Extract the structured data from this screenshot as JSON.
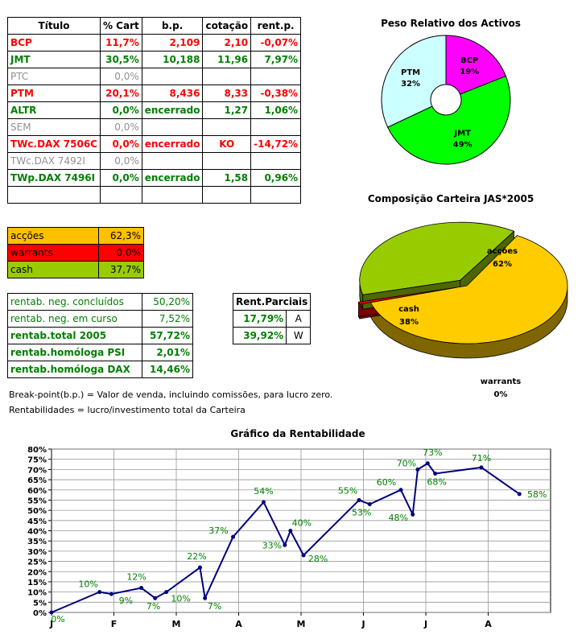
{
  "portfolio": {
    "headers": [
      "Título",
      "% Cart",
      "b.p.",
      "cotação",
      "rent.p."
    ],
    "rows": [
      {
        "titulo": "BCP",
        "cart": "11,7%",
        "bp": "2,109",
        "cot": "2,10",
        "rent": "-0,07%",
        "style": "red"
      },
      {
        "titulo": "JMT",
        "cart": "30,5%",
        "bp": "10,188",
        "cot": "11,96",
        "rent": "7,97%",
        "style": "green"
      },
      {
        "titulo": "PTC",
        "cart": "0,0%",
        "bp": "",
        "cot": "",
        "rent": "",
        "style": "gray"
      },
      {
        "titulo": "PTM",
        "cart": "20,1%",
        "bp": "8,436",
        "cot": "8,33",
        "rent": "-0,38%",
        "style": "red"
      },
      {
        "titulo": "ALTR",
        "cart": "0,0%",
        "bp": "encerrado",
        "cot": "1,27",
        "rent": "1,06%",
        "style": "green"
      },
      {
        "titulo": "SEM",
        "cart": "0,0%",
        "bp": "",
        "cot": "",
        "rent": "",
        "style": "gray"
      },
      {
        "titulo": "TWc.DAX 7506C",
        "cart": "0,0%",
        "bp": "encerrado",
        "cot": "KO",
        "rent": "-14,72%",
        "style": "red"
      },
      {
        "titulo": "TWc.DAX 7492I",
        "cart": "0,0%",
        "bp": "",
        "cot": "",
        "rent": "",
        "style": "gray"
      },
      {
        "titulo": "TWp.DAX 7496I",
        "cart": "0,0%",
        "bp": "encerrado",
        "cot": "1,58",
        "rent": "0,96%",
        "style": "green"
      }
    ]
  },
  "allocation": [
    {
      "label": "acções",
      "value": "62,3%",
      "color": "#ffc000"
    },
    {
      "label": "warrants",
      "value": "0,0%",
      "color": "#ff0000"
    },
    {
      "label": "cash",
      "value": "37,7%",
      "color": "#99cc00"
    }
  ],
  "returns": [
    {
      "label": "rentab. neg. concluídos",
      "value": "50,20%",
      "bold": false
    },
    {
      "label": "rentab. neg. em curso",
      "value": "7,52%",
      "bold": false
    },
    {
      "label": "rentab.total 2005",
      "value": "57,72%",
      "bold": true
    },
    {
      "label": "rentab.homóloga PSI",
      "value": "2,01%",
      "bold": true
    },
    {
      "label": "rentab.homóloga DAX",
      "value": "14,46%",
      "bold": true
    }
  ],
  "partial": {
    "title": "Rent.Parciais",
    "rows": [
      {
        "value": "17,79%",
        "code": "A"
      },
      {
        "value": "39,92%",
        "code": "W"
      }
    ]
  },
  "notes": {
    "breakpoint": "Break-point(b.p.) = Valor de venda, incluindo comissões, para lucro zero.",
    "rentabilidades": "Rentabilidades = lucro/investimento total da Carteira"
  },
  "chart_data": [
    {
      "type": "pie",
      "title": "Peso Relativo dos Activos",
      "categories": [
        "BCP",
        "JMT",
        "PTM"
      ],
      "values": [
        19,
        49,
        32
      ],
      "labels": [
        "19%",
        "49%",
        "32%"
      ],
      "colors": [
        "#ff00ff",
        "#00ff00",
        "#ccffff"
      ]
    },
    {
      "type": "pie",
      "title": "Composição Carteira JAS*2005",
      "categories": [
        "acções",
        "warrants",
        "cash"
      ],
      "values": [
        62,
        0,
        38
      ],
      "labels": [
        "62%",
        "0%",
        "38%"
      ],
      "colors": [
        "#ffcc00",
        "#ff0000",
        "#99cc00"
      ]
    },
    {
      "type": "line",
      "title": "Gráfico da Rentabilidade",
      "ylim": [
        0,
        80
      ],
      "yticks": [
        "0%",
        "5%",
        "10%",
        "15%",
        "20%",
        "25%",
        "30%",
        "35%",
        "40%",
        "45%",
        "50%",
        "55%",
        "60%",
        "65%",
        "70%",
        "75%",
        "80%"
      ],
      "xticks": [
        "J",
        "F",
        "M",
        "A",
        "M",
        "J",
        "J",
        "A"
      ],
      "x": [
        0,
        0.77,
        0.96,
        1.44,
        1.66,
        1.84,
        2.38,
        2.46,
        2.91,
        3.4,
        3.74,
        3.83,
        4.04,
        4.93,
        5.1,
        5.6,
        5.79,
        5.87,
        6.03,
        6.15,
        6.89,
        7.5
      ],
      "y": [
        0,
        10,
        9,
        12,
        7,
        10,
        22,
        7,
        37,
        54,
        33,
        40,
        28,
        55,
        53,
        60,
        48,
        70,
        73,
        68,
        71,
        58
      ],
      "point_labels": [
        {
          "i": 0,
          "text": "0%"
        },
        {
          "i": 1,
          "text": "10%"
        },
        {
          "i": 2,
          "text": "9%"
        },
        {
          "i": 3,
          "text": "12%"
        },
        {
          "i": 4,
          "text": "7%"
        },
        {
          "i": 5,
          "text": "10%"
        },
        {
          "i": 6,
          "text": "22%"
        },
        {
          "i": 7,
          "text": "7%"
        },
        {
          "i": 8,
          "text": "37%"
        },
        {
          "i": 9,
          "text": "54%"
        },
        {
          "i": 10,
          "text": "33%"
        },
        {
          "i": 11,
          "text": "40%"
        },
        {
          "i": 12,
          "text": "28%"
        },
        {
          "i": 13,
          "text": "55%"
        },
        {
          "i": 14,
          "text": "53%"
        },
        {
          "i": 15,
          "text": "60%"
        },
        {
          "i": 16,
          "text": "48%"
        },
        {
          "i": 17,
          "text": "70%"
        },
        {
          "i": 18,
          "text": "73%"
        },
        {
          "i": 19,
          "text": "68%"
        },
        {
          "i": 20,
          "text": "71%"
        },
        {
          "i": 21,
          "text": "58%"
        }
      ],
      "line_color": "#000080",
      "label_color": "#008000"
    }
  ]
}
